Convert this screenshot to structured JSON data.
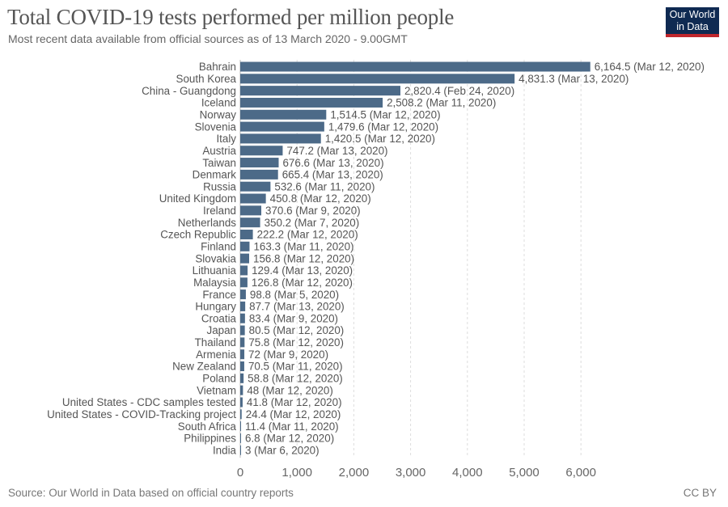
{
  "header": {
    "title": "Total COVID-19 tests performed per million people",
    "subtitle": "Most recent data available from official sources as of 13 March 2020 - 9.00GMT",
    "logo_line1": "Our World",
    "logo_line2": "in Data"
  },
  "footer": {
    "source": "Source: Our World in Data based on official country reports",
    "license": "CC BY"
  },
  "colors": {
    "bar": "#4c6a88",
    "logo_bg": "#0f2a52",
    "logo_accent": "#c0272d",
    "grid": "#dddddd"
  },
  "chart_data": {
    "type": "bar",
    "orientation": "horizontal",
    "title": "Total COVID-19 tests performed per million people",
    "subtitle": "Most recent data available from official sources as of 13 March 2020 - 9.00GMT",
    "xlabel": "",
    "ylabel": "",
    "xlim": [
      0,
      6300
    ],
    "grid": "vertical dashed",
    "xticks": [
      0,
      1000,
      2000,
      3000,
      4000,
      5000,
      6000
    ],
    "xtick_labels": [
      "0",
      "1,000",
      "2,000",
      "3,000",
      "4,000",
      "5,000",
      "6,000"
    ],
    "categories": [
      "Bahrain",
      "South Korea",
      "China - Guangdong",
      "Iceland",
      "Norway",
      "Slovenia",
      "Italy",
      "Austria",
      "Taiwan",
      "Denmark",
      "Russia",
      "United Kingdom",
      "Ireland",
      "Netherlands",
      "Czech Republic",
      "Finland",
      "Slovakia",
      "Lithuania",
      "Malaysia",
      "France",
      "Hungary",
      "Croatia",
      "Japan",
      "Thailand",
      "Armenia",
      "New Zealand",
      "Poland",
      "Vietnam",
      "United States - CDC samples tested",
      "United States - COVID-Tracking project",
      "South Africa",
      "Philippines",
      "India"
    ],
    "values": [
      6164.5,
      4831.3,
      2820.4,
      2508.2,
      1514.5,
      1479.6,
      1420.5,
      747.2,
      676.6,
      665.4,
      532.6,
      450.8,
      370.6,
      350.2,
      222.2,
      163.3,
      156.8,
      129.4,
      126.8,
      98.8,
      87.7,
      83.4,
      80.5,
      75.8,
      72,
      70.5,
      58.8,
      48,
      41.8,
      24.4,
      11.4,
      6.8,
      3
    ],
    "value_labels": [
      "6,164.5 (Mar 12, 2020)",
      "4,831.3 (Mar 13, 2020)",
      "2,820.4 (Feb 24, 2020)",
      "2,508.2 (Mar 11, 2020)",
      "1,514.5 (Mar 12, 2020)",
      "1,479.6 (Mar 12, 2020)",
      "1,420.5 (Mar 12, 2020)",
      "747.2 (Mar 13, 2020)",
      "676.6 (Mar 13, 2020)",
      "665.4 (Mar 13, 2020)",
      "532.6 (Mar 11, 2020)",
      "450.8 (Mar 12, 2020)",
      "370.6 (Mar 9, 2020)",
      "350.2 (Mar 7, 2020)",
      "222.2 (Mar 12, 2020)",
      "163.3 (Mar 11, 2020)",
      "156.8 (Mar 12, 2020)",
      "129.4 (Mar 13, 2020)",
      "126.8 (Mar 12, 2020)",
      "98.8 (Mar 5, 2020)",
      "87.7 (Mar 13, 2020)",
      "83.4 (Mar 9, 2020)",
      "80.5 (Mar 12, 2020)",
      "75.8 (Mar 12, 2020)",
      "72 (Mar 9, 2020)",
      "70.5 (Mar 11, 2020)",
      "58.8 (Mar 12, 2020)",
      "48 (Mar 12, 2020)",
      "41.8 (Mar 12, 2020)",
      "24.4 (Mar 12, 2020)",
      "11.4 (Mar 11, 2020)",
      "6.8 (Mar 12, 2020)",
      "3 (Mar 6, 2020)"
    ]
  }
}
